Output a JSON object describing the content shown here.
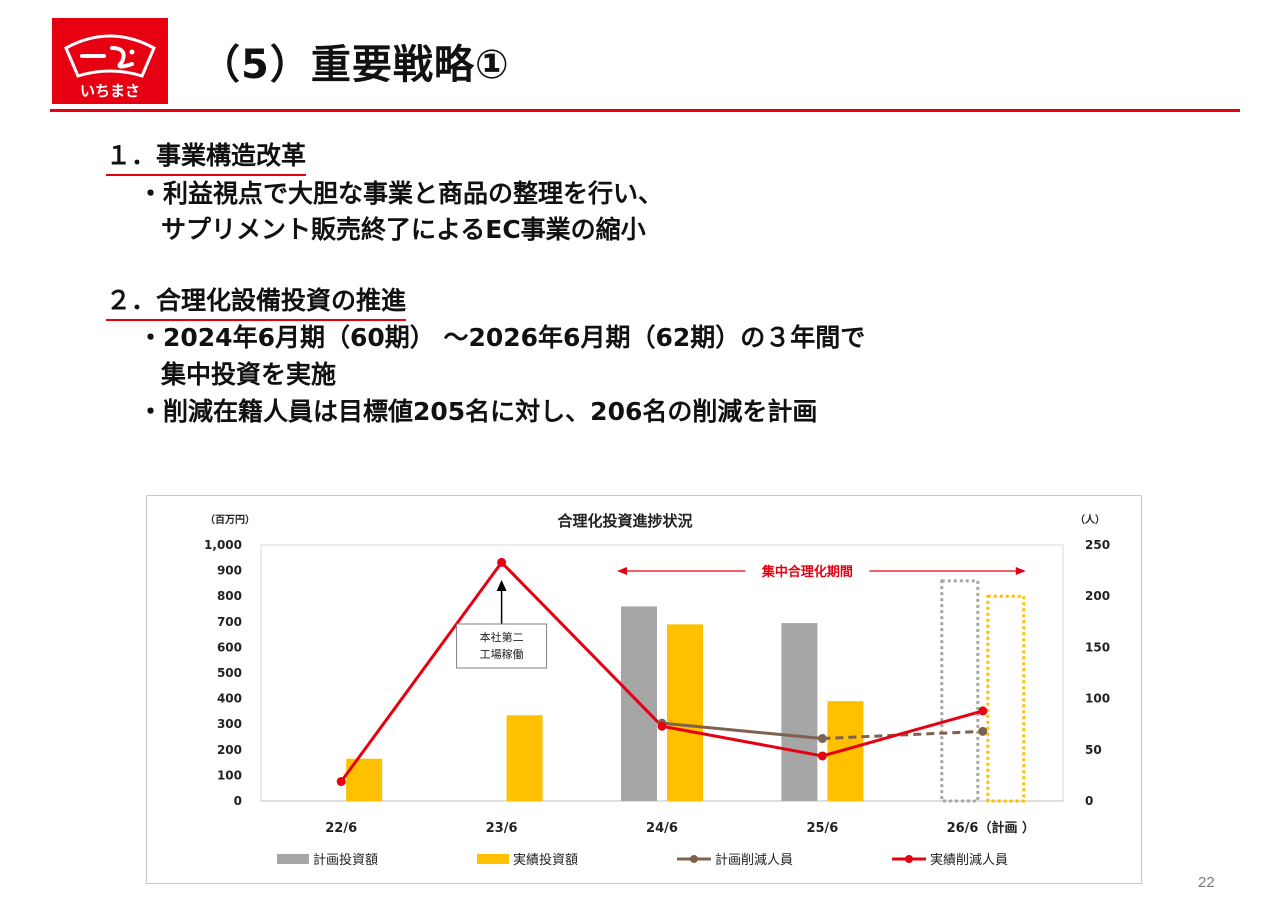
{
  "header": {
    "logo_text": "いちまさ",
    "title": "（5）重要戦略①",
    "page_number": "22"
  },
  "colors": {
    "brand_red": "#e60012",
    "plan_invest": "#a6a6a6",
    "actual_invest": "#ffc000",
    "plan_reduction": "#7f6150",
    "actual_reduction": "#e60012"
  },
  "sections": [
    {
      "heading": "１．事業構造改革",
      "bullets": [
        [
          "・利益視点で大胆な事業と商品の整理を行い、",
          "サプリメント販売終了によるEC事業の縮小"
        ]
      ]
    },
    {
      "heading": "２．合理化設備投資の推進",
      "bullets": [
        [
          "・2024年6月期（60期） ～2026年6月期（62期）の３年間で",
          "集中投資を実施"
        ],
        [
          "・削減在籍人員は目標値205名に対し、206名の削減を計画"
        ]
      ]
    }
  ],
  "chart_data": {
    "type": "bar",
    "title": "合理化投資進捗状況",
    "y_left_unit": "（百万円）",
    "y_right_unit": "（人）",
    "categories": [
      "22/6",
      "23/6",
      "24/6",
      "25/6",
      "26/6（計画 ）"
    ],
    "ylim_left": [
      0,
      1000
    ],
    "y_left_ticks": [
      "0",
      "100",
      "200",
      "300",
      "400",
      "500",
      "600",
      "700",
      "800",
      "900",
      "1,000"
    ],
    "ylim_right": [
      0,
      250
    ],
    "y_right_ticks": [
      "0",
      "50",
      "100",
      "150",
      "200",
      "250"
    ],
    "series": [
      {
        "name": "計画投資額",
        "kind": "bar",
        "axis": "left",
        "values": [
          null,
          null,
          760,
          695,
          860
        ],
        "projected": [
          false,
          false,
          false,
          false,
          true
        ]
      },
      {
        "name": "実績投資額",
        "kind": "bar",
        "axis": "left",
        "values": [
          165,
          335,
          690,
          390,
          800
        ],
        "projected": [
          false,
          false,
          false,
          false,
          true
        ]
      },
      {
        "name": "計画削減人員",
        "kind": "line",
        "axis": "right",
        "values": [
          null,
          null,
          76,
          61,
          68
        ],
        "dashed_from_index": 3
      },
      {
        "name": "実績削減人員",
        "kind": "line",
        "axis": "right",
        "values": [
          19,
          233,
          73,
          44,
          88
        ]
      }
    ],
    "annotations": {
      "callout": "本社第二\n工場稼働",
      "period_label": "集中合理化期間"
    },
    "legend_position": "bottom",
    "grid": false
  }
}
